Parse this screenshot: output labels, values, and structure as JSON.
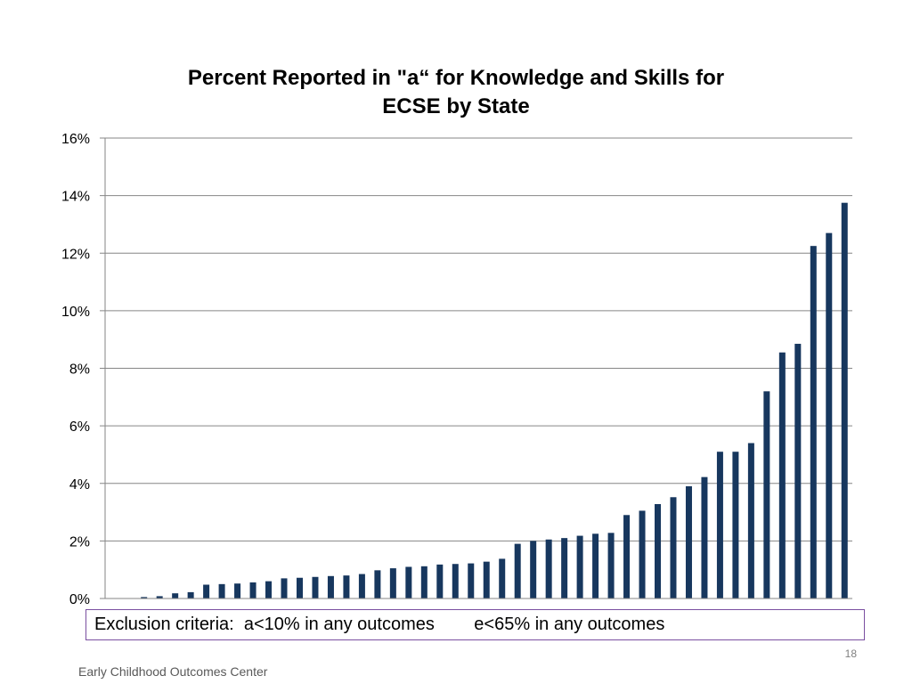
{
  "slide": {
    "criteria_text": "Exclusion criteria:  a<10% in any outcomes        e<65% in any outcomes",
    "page_number": "18",
    "footer": "Early Childhood Outcomes Center"
  },
  "chart_data": {
    "type": "bar",
    "title_line1": "Percent Reported in \"a“ for  Knowledge and Skills for",
    "title_line2": "ECSE by State",
    "xlabel": "",
    "ylabel": "",
    "ylim": [
      0,
      16
    ],
    "yticks": [
      0,
      2,
      4,
      6,
      8,
      10,
      12,
      14,
      16
    ],
    "ytick_labels": [
      "0%",
      "2%",
      "4%",
      "6%",
      "8%",
      "10%",
      "12%",
      "14%",
      "16%"
    ],
    "grid": true,
    "bar_color": "#17375e",
    "values": [
      0,
      0,
      0.05,
      0.08,
      0.18,
      0.22,
      0.48,
      0.5,
      0.52,
      0.56,
      0.6,
      0.7,
      0.72,
      0.75,
      0.78,
      0.8,
      0.85,
      0.98,
      1.05,
      1.1,
      1.12,
      1.18,
      1.2,
      1.22,
      1.28,
      1.38,
      1.9,
      2.0,
      2.05,
      2.1,
      2.18,
      2.25,
      2.28,
      2.9,
      3.05,
      3.28,
      3.52,
      3.9,
      4.22,
      5.1,
      5.1,
      5.4,
      7.2,
      8.55,
      8.85,
      12.25,
      12.7,
      13.75
    ]
  }
}
